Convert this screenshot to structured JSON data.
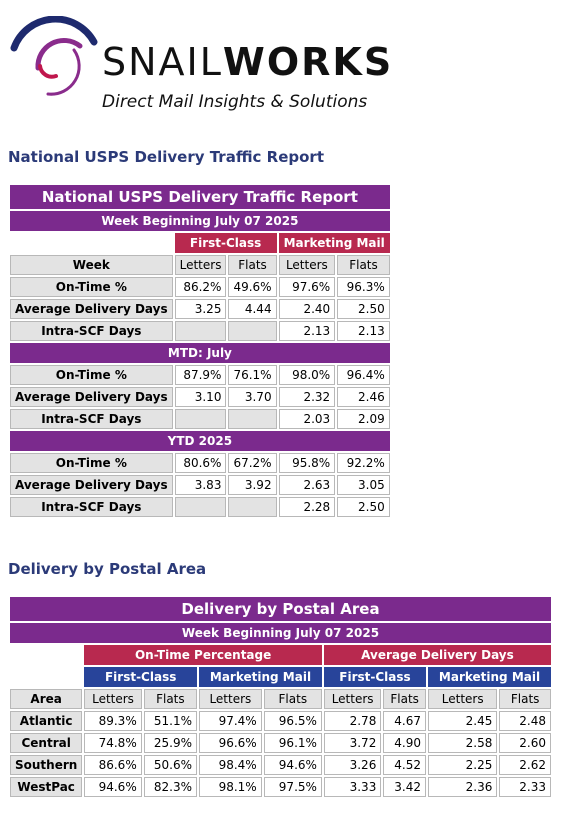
{
  "brand": {
    "name_part1": "SNAIL",
    "name_part2": "WORKS",
    "tagline": "Direct Mail Insights & Solutions",
    "colors": {
      "arc_navy": "#1e2a6e",
      "arc_purple": "#8a2c8c",
      "arc_red": "#c0174d"
    }
  },
  "headings": {
    "national": "National USPS Delivery Traffic Report",
    "postal": "Delivery by Postal Area"
  },
  "national_table": {
    "title": "National USPS Delivery Traffic Report",
    "week_label": "Week Beginning July 07 2025",
    "group_headers": [
      "First-Class",
      "Marketing Mail"
    ],
    "row_header": "Week",
    "col_headers": [
      "Letters",
      "Flats",
      "Letters",
      "Flats"
    ],
    "sections": [
      {
        "label": "",
        "rows": [
          {
            "label": "On-Time %",
            "values": [
              "86.2%",
              "49.6%",
              "97.6%",
              "96.3%"
            ]
          },
          {
            "label": "Average Delivery Days",
            "values": [
              "3.25",
              "4.44",
              "2.40",
              "2.50"
            ]
          },
          {
            "label": "Intra-SCF Days",
            "values": [
              "",
              "",
              "2.13",
              "2.13"
            ]
          }
        ]
      },
      {
        "label": "MTD: July",
        "rows": [
          {
            "label": "On-Time %",
            "values": [
              "87.9%",
              "76.1%",
              "98.0%",
              "96.4%"
            ]
          },
          {
            "label": "Average Delivery Days",
            "values": [
              "3.10",
              "3.70",
              "2.32",
              "2.46"
            ]
          },
          {
            "label": "Intra-SCF Days",
            "values": [
              "",
              "",
              "2.03",
              "2.09"
            ]
          }
        ]
      },
      {
        "label": "YTD 2025",
        "rows": [
          {
            "label": "On-Time %",
            "values": [
              "80.6%",
              "67.2%",
              "95.8%",
              "92.2%"
            ]
          },
          {
            "label": "Average Delivery Days",
            "values": [
              "3.83",
              "3.92",
              "2.63",
              "3.05"
            ]
          },
          {
            "label": "Intra-SCF Days",
            "values": [
              "",
              "",
              "2.28",
              "2.50"
            ]
          }
        ]
      }
    ]
  },
  "postal_table": {
    "title": "Delivery by Postal Area",
    "week_label": "Week Beginning July 07 2025",
    "top_groups": [
      "On-Time Percentage",
      "Average Delivery Days"
    ],
    "sub_groups": [
      "First-Class",
      "Marketing Mail",
      "First-Class",
      "Marketing Mail"
    ],
    "row_header": "Area",
    "col_headers": [
      "Letters",
      "Flats",
      "Letters",
      "Flats",
      "Letters",
      "Flats",
      "Letters",
      "Flats"
    ],
    "rows": [
      {
        "area": "Atlantic",
        "values": [
          "89.3%",
          "51.1%",
          "97.4%",
          "96.5%",
          "2.78",
          "4.67",
          "2.45",
          "2.48"
        ]
      },
      {
        "area": "Central",
        "values": [
          "74.8%",
          "25.9%",
          "96.6%",
          "96.1%",
          "3.72",
          "4.90",
          "2.58",
          "2.60"
        ]
      },
      {
        "area": "Southern",
        "values": [
          "86.6%",
          "50.6%",
          "98.4%",
          "94.6%",
          "3.26",
          "4.52",
          "2.25",
          "2.62"
        ]
      },
      {
        "area": "WestPac",
        "values": [
          "94.6%",
          "82.3%",
          "98.1%",
          "97.5%",
          "3.33",
          "3.42",
          "2.36",
          "2.33"
        ]
      }
    ]
  }
}
